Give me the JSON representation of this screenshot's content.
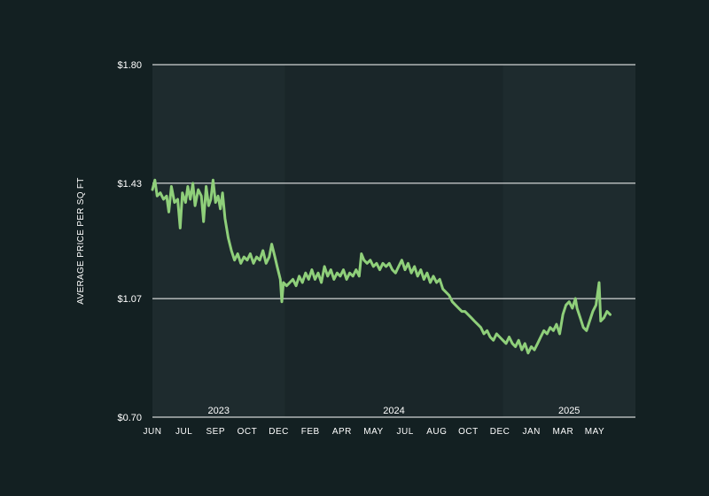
{
  "colors": {
    "background": "#132022",
    "plot_band_a": "#1e2b2e",
    "plot_band_b": "#1a2629",
    "gridline": "#ffffff",
    "line": "#8fcf7a",
    "text": "#ffffff"
  },
  "chart_data": {
    "type": "line",
    "title": "",
    "xlabel": "",
    "ylabel": "AVERAGE PRICE PER SQ FT",
    "ylim": [
      0.7,
      1.8
    ],
    "y_ticks": [
      {
        "value": 0.7,
        "label": "$0.70"
      },
      {
        "value": 1.07,
        "label": "$1.07"
      },
      {
        "value": 1.43,
        "label": "$1.43"
      },
      {
        "value": 1.8,
        "label": "$1.80"
      }
    ],
    "grid": "horizontal",
    "x_tick_labels": [
      "JUN",
      "JUL",
      "SEP",
      "OCT",
      "DEC",
      "FEB",
      "APR",
      "MAY",
      "JUL",
      "AUG",
      "OCT",
      "DEC",
      "JAN",
      "MAR",
      "MAY"
    ],
    "year_bands": [
      {
        "label": "2023",
        "start": 0,
        "end": 4.2
      },
      {
        "label": "2024",
        "start": 4.2,
        "end": 11.1
      },
      {
        "label": "2025",
        "start": 11.1,
        "end": 15.3
      }
    ],
    "x_range": [
      0,
      15.3
    ],
    "series": [
      {
        "values": [
          [
            0.0,
            1.41
          ],
          [
            0.08,
            1.44
          ],
          [
            0.15,
            1.39
          ],
          [
            0.25,
            1.4
          ],
          [
            0.35,
            1.38
          ],
          [
            0.45,
            1.39
          ],
          [
            0.52,
            1.34
          ],
          [
            0.6,
            1.42
          ],
          [
            0.7,
            1.37
          ],
          [
            0.8,
            1.38
          ],
          [
            0.88,
            1.29
          ],
          [
            0.95,
            1.4
          ],
          [
            1.05,
            1.37
          ],
          [
            1.12,
            1.42
          ],
          [
            1.2,
            1.38
          ],
          [
            1.28,
            1.43
          ],
          [
            1.35,
            1.36
          ],
          [
            1.45,
            1.41
          ],
          [
            1.55,
            1.39
          ],
          [
            1.62,
            1.31
          ],
          [
            1.7,
            1.42
          ],
          [
            1.78,
            1.36
          ],
          [
            1.85,
            1.38
          ],
          [
            1.92,
            1.44
          ],
          [
            2.0,
            1.37
          ],
          [
            2.08,
            1.39
          ],
          [
            2.15,
            1.35
          ],
          [
            2.22,
            1.4
          ],
          [
            2.3,
            1.32
          ],
          [
            2.4,
            1.26
          ],
          [
            2.5,
            1.22
          ],
          [
            2.6,
            1.19
          ],
          [
            2.7,
            1.21
          ],
          [
            2.8,
            1.18
          ],
          [
            2.9,
            1.2
          ],
          [
            3.0,
            1.19
          ],
          [
            3.1,
            1.21
          ],
          [
            3.2,
            1.18
          ],
          [
            3.3,
            1.2
          ],
          [
            3.4,
            1.19
          ],
          [
            3.5,
            1.22
          ],
          [
            3.6,
            1.18
          ],
          [
            3.7,
            1.2
          ],
          [
            3.78,
            1.24
          ],
          [
            3.88,
            1.2
          ],
          [
            3.95,
            1.17
          ],
          [
            4.05,
            1.13
          ],
          [
            4.1,
            1.06
          ],
          [
            4.15,
            1.12
          ],
          [
            4.25,
            1.11
          ],
          [
            4.35,
            1.12
          ],
          [
            4.45,
            1.13
          ],
          [
            4.55,
            1.11
          ],
          [
            4.65,
            1.14
          ],
          [
            4.75,
            1.12
          ],
          [
            4.85,
            1.15
          ],
          [
            4.95,
            1.13
          ],
          [
            5.05,
            1.16
          ],
          [
            5.15,
            1.13
          ],
          [
            5.25,
            1.15
          ],
          [
            5.35,
            1.12
          ],
          [
            5.45,
            1.17
          ],
          [
            5.55,
            1.14
          ],
          [
            5.65,
            1.16
          ],
          [
            5.75,
            1.13
          ],
          [
            5.85,
            1.15
          ],
          [
            5.95,
            1.14
          ],
          [
            6.05,
            1.16
          ],
          [
            6.15,
            1.13
          ],
          [
            6.25,
            1.15
          ],
          [
            6.35,
            1.14
          ],
          [
            6.45,
            1.16
          ],
          [
            6.55,
            1.14
          ],
          [
            6.62,
            1.21
          ],
          [
            6.7,
            1.19
          ],
          [
            6.8,
            1.18
          ],
          [
            6.9,
            1.19
          ],
          [
            7.0,
            1.17
          ],
          [
            7.1,
            1.18
          ],
          [
            7.2,
            1.16
          ],
          [
            7.3,
            1.18
          ],
          [
            7.4,
            1.17
          ],
          [
            7.5,
            1.18
          ],
          [
            7.6,
            1.16
          ],
          [
            7.7,
            1.15
          ],
          [
            7.8,
            1.17
          ],
          [
            7.9,
            1.19
          ],
          [
            8.0,
            1.16
          ],
          [
            8.1,
            1.18
          ],
          [
            8.2,
            1.15
          ],
          [
            8.3,
            1.17
          ],
          [
            8.4,
            1.14
          ],
          [
            8.5,
            1.16
          ],
          [
            8.6,
            1.13
          ],
          [
            8.7,
            1.15
          ],
          [
            8.8,
            1.12
          ],
          [
            8.9,
            1.14
          ],
          [
            9.0,
            1.12
          ],
          [
            9.1,
            1.13
          ],
          [
            9.2,
            1.1
          ],
          [
            9.3,
            1.09
          ],
          [
            9.4,
            1.08
          ],
          [
            9.5,
            1.06
          ],
          [
            9.6,
            1.05
          ],
          [
            9.7,
            1.04
          ],
          [
            9.8,
            1.03
          ],
          [
            9.9,
            1.03
          ],
          [
            10.0,
            1.02
          ],
          [
            10.1,
            1.01
          ],
          [
            10.2,
            1.0
          ],
          [
            10.3,
            0.99
          ],
          [
            10.4,
            0.98
          ],
          [
            10.5,
            0.96
          ],
          [
            10.6,
            0.97
          ],
          [
            10.7,
            0.95
          ],
          [
            10.8,
            0.94
          ],
          [
            10.9,
            0.96
          ],
          [
            11.0,
            0.95
          ],
          [
            11.1,
            0.94
          ],
          [
            11.2,
            0.93
          ],
          [
            11.3,
            0.95
          ],
          [
            11.4,
            0.93
          ],
          [
            11.5,
            0.92
          ],
          [
            11.6,
            0.94
          ],
          [
            11.7,
            0.91
          ],
          [
            11.8,
            0.93
          ],
          [
            11.9,
            0.9
          ],
          [
            12.0,
            0.92
          ],
          [
            12.1,
            0.91
          ],
          [
            12.2,
            0.93
          ],
          [
            12.3,
            0.95
          ],
          [
            12.4,
            0.97
          ],
          [
            12.5,
            0.96
          ],
          [
            12.6,
            0.98
          ],
          [
            12.7,
            0.97
          ],
          [
            12.8,
            0.99
          ],
          [
            12.9,
            0.96
          ],
          [
            13.0,
            1.02
          ],
          [
            13.1,
            1.05
          ],
          [
            13.2,
            1.06
          ],
          [
            13.3,
            1.04
          ],
          [
            13.4,
            1.07
          ],
          [
            13.45,
            1.04
          ],
          [
            13.55,
            1.01
          ],
          [
            13.65,
            0.98
          ],
          [
            13.75,
            0.97
          ],
          [
            13.85,
            1.0
          ],
          [
            13.95,
            1.03
          ],
          [
            14.05,
            1.05
          ],
          [
            14.15,
            1.12
          ],
          [
            14.2,
            1.0
          ],
          [
            14.3,
            1.01
          ],
          [
            14.4,
            1.03
          ],
          [
            14.5,
            1.02
          ]
        ]
      }
    ]
  }
}
